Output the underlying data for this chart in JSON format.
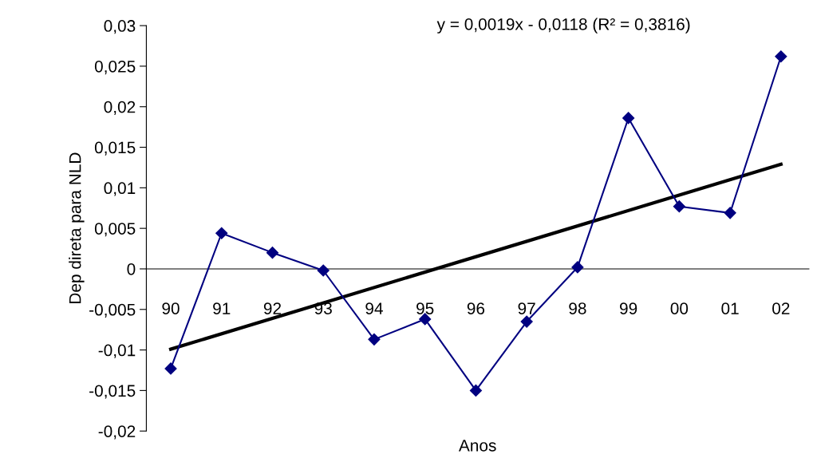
{
  "chart_data": {
    "type": "line",
    "xlabel": "Anos",
    "ylabel": "Dep direta para NLD",
    "categories": [
      "90",
      "91",
      "92",
      "93",
      "94",
      "95",
      "96",
      "97",
      "98",
      "99",
      "00",
      "01",
      "02"
    ],
    "series": [
      {
        "color": "#000080",
        "marker": "diamond",
        "values": [
          -0.0123,
          0.0044,
          0.002,
          -0.0002,
          -0.0087,
          -0.0062,
          -0.015,
          -0.0065,
          0.0002,
          0.0186,
          0.0077,
          0.0069,
          0.0262
        ]
      },
      {
        "type": "line",
        "color": "#000000",
        "marker": "none",
        "x": [
          "90",
          "02"
        ],
        "values": [
          -0.0099,
          0.0129
        ]
      }
    ],
    "ylim": [
      -0.02,
      0.03
    ],
    "yticks": [
      {
        "value": -0.02,
        "label": "-0,02"
      },
      {
        "value": -0.015,
        "label": "-0,015"
      },
      {
        "value": -0.01,
        "label": "-0,01"
      },
      {
        "value": -0.005,
        "label": "-0,005"
      },
      0,
      {
        "value": 0.005,
        "label": "0,005"
      },
      {
        "value": 0.01,
        "label": "0,01"
      },
      {
        "value": 0.015,
        "label": "0,015"
      },
      {
        "value": 0.02,
        "label": "0,02"
      },
      {
        "value": 0.025,
        "label": "0,025"
      },
      {
        "value": 0.03,
        "label": "0,03"
      }
    ],
    "annotations": [
      "y = 0,0019x - 0,0118 (R² = 0,3816)"
    ],
    "grid": false,
    "legend": false
  }
}
